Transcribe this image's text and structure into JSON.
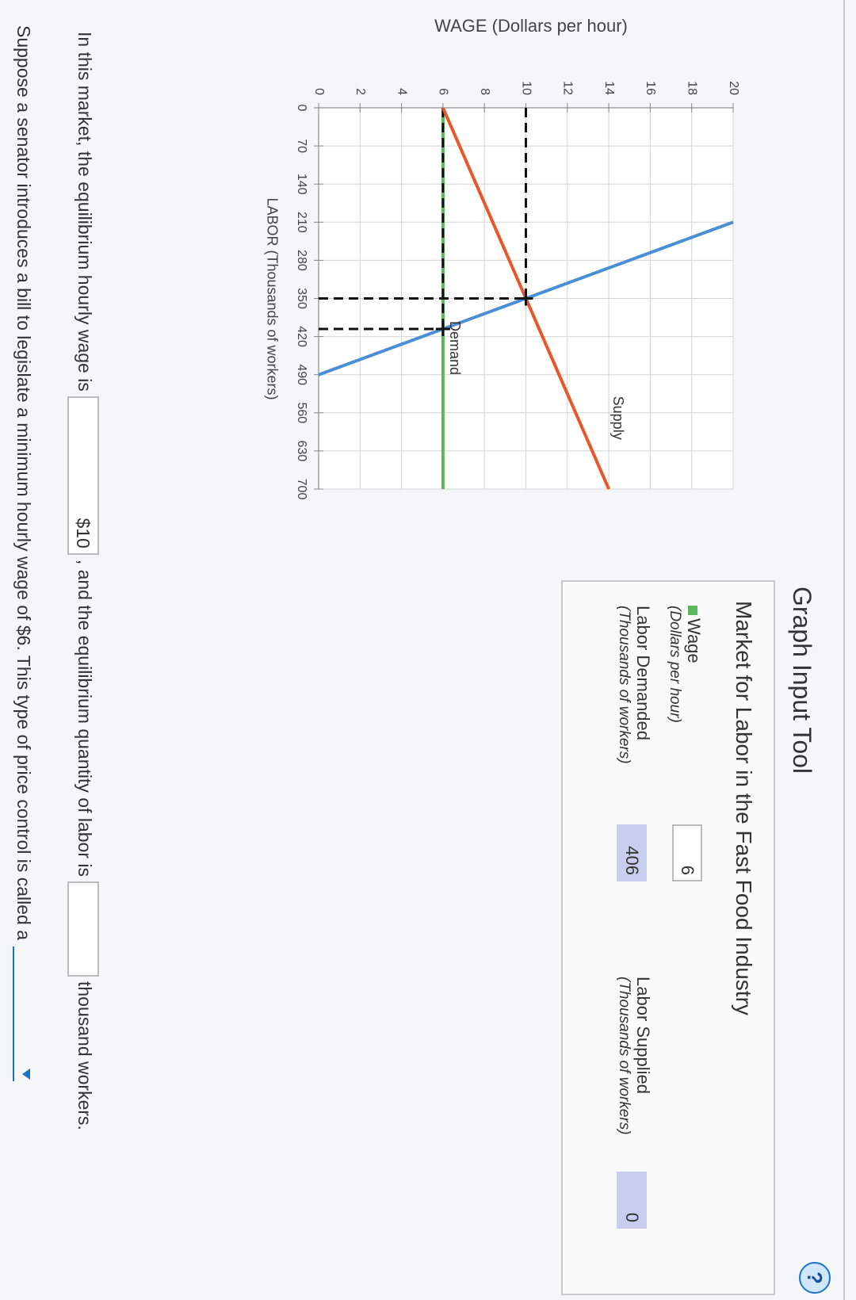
{
  "help": "?",
  "title": "Graph Input Tool",
  "chart_data": {
    "type": "line",
    "ylabel": "WAGE (Dollars per hour)",
    "xlabel": "LABOR (Thousands of workers)",
    "xlim": [
      0,
      700
    ],
    "ylim": [
      0,
      20
    ],
    "xticks": [
      0,
      70,
      140,
      210,
      280,
      350,
      420,
      490,
      560,
      630,
      700
    ],
    "yticks": [
      0,
      2,
      4,
      6,
      8,
      10,
      12,
      14,
      16,
      18,
      20
    ],
    "grid": true,
    "series": [
      {
        "name": "Supply",
        "color": "#e8562a",
        "x": [
          0,
          700
        ],
        "values": [
          6,
          14
        ]
      },
      {
        "name": "Demand",
        "color": "#4a8fd6",
        "x": [
          210,
          490
        ],
        "values": [
          20,
          0
        ]
      }
    ],
    "points": [
      {
        "x": 350,
        "y": 10
      },
      {
        "x": 406,
        "y": 6
      }
    ]
  },
  "panel": {
    "title": "Market for Labor in the Fast Food Industry",
    "marker_color": "#5cb85c",
    "rows": [
      {
        "label": "Wage",
        "unit": "(Dollars per hour)",
        "value": 6
      },
      {
        "label": "Labor Demanded",
        "unit": "(Thousands of workers)",
        "value": 406
      },
      {
        "label": "Labor Supplied",
        "unit": "(Thousands of workers)",
        "value": 0
      }
    ]
  },
  "questions": [
    {
      "before": "In this market, the equilibrium hourly wage is",
      "wage_answer": "$10",
      "middle": ", and the equilibrium quantity of labor is",
      "after": "thousand workers."
    },
    {
      "before": "Suppose a senator introduces a bill to legislate a minimum hourly wage of $6. This type of price control is called a"
    }
  ]
}
